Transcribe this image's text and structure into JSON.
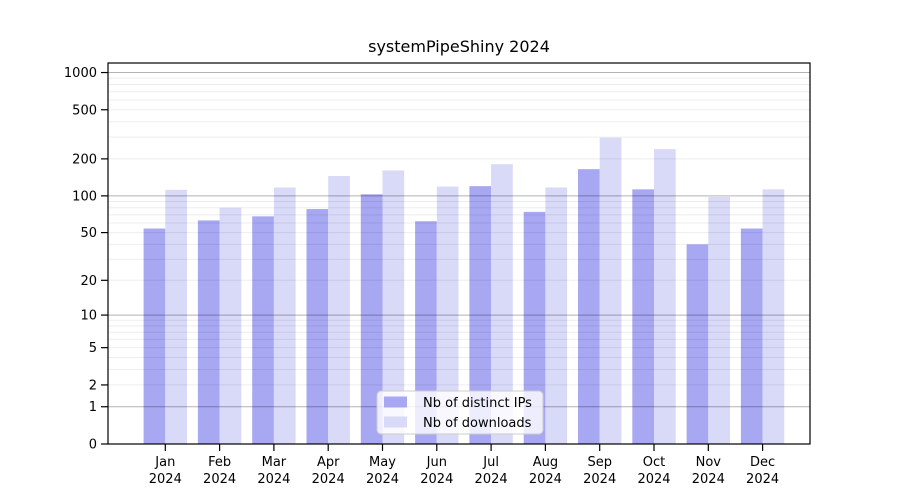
{
  "title": "systemPipeShiny 2024",
  "chart_data": {
    "type": "bar",
    "title": "systemPipeShiny 2024",
    "categories": [
      "Jan",
      "Feb",
      "Mar",
      "Apr",
      "May",
      "Jun",
      "Jul",
      "Aug",
      "Sep",
      "Oct",
      "Nov",
      "Dec"
    ],
    "category_year": "2024",
    "series": [
      {
        "name": "Nb of distinct IPs",
        "color": "#a7a7f2",
        "values": [
          54,
          63,
          68,
          78,
          103,
          62,
          120,
          74,
          165,
          113,
          40,
          54
        ]
      },
      {
        "name": "Nb of downloads",
        "color": "#d9d9f8",
        "values": [
          112,
          80,
          117,
          145,
          161,
          119,
          181,
          117,
          297,
          240,
          98,
          113
        ]
      }
    ],
    "yscale": "log10(x+1)",
    "yticks": [
      0,
      1,
      2,
      5,
      10,
      20,
      50,
      100,
      200,
      500,
      1000
    ],
    "ylim": [
      0,
      1200
    ],
    "xlabel": "",
    "ylabel": "",
    "grid": true,
    "legend_position": "lower center",
    "colors": {
      "major_grid": "rgba(0,0,0,0.30)",
      "minor_grid": "rgba(0,0,0,0.07)",
      "axis": "#000000",
      "legend_border": "#cccccc",
      "background": "#ffffff"
    }
  }
}
